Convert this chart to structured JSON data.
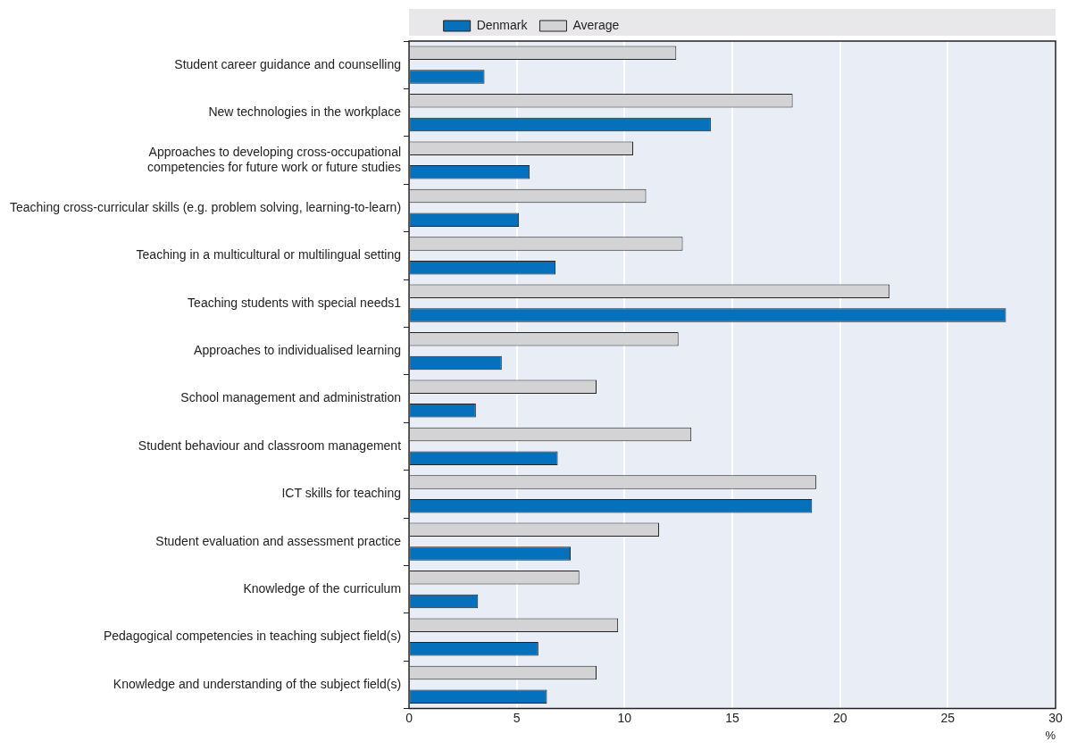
{
  "chart_data": {
    "type": "bar",
    "orientation": "horizontal",
    "xlabel": "%",
    "categories": [
      "Student career guidance and counselling",
      "New technologies in the workplace",
      "Approaches to developing cross-occupational competencies for future work or future studies",
      "Teaching cross-curricular skills (e.g. problem solving, learning-to-learn)",
      "Teaching in a multicultural or multilingual setting",
      "Teaching students with special needs1",
      "Approaches to individualised learning",
      "School management and administration",
      "Student behaviour and classroom management",
      "ICT skills for teaching",
      "Student evaluation and assessment practice",
      "Knowledge of the curriculum",
      "Pedagogical competencies in teaching subject field(s)",
      "Knowledge and understanding of the subject field(s)"
    ],
    "series": [
      {
        "name": "Average",
        "color": "#d3d3d5",
        "values": [
          12.4,
          17.8,
          10.4,
          11.0,
          12.7,
          22.3,
          12.5,
          8.7,
          13.1,
          18.9,
          11.6,
          7.9,
          9.7,
          8.7
        ]
      },
      {
        "name": "Denmark",
        "color": "#0570bb",
        "values": [
          3.5,
          14.0,
          5.6,
          5.1,
          6.8,
          27.7,
          4.3,
          3.1,
          6.9,
          18.7,
          7.5,
          3.2,
          6.0,
          6.4
        ]
      }
    ],
    "xlim": [
      0,
      30
    ],
    "xticks": [
      0,
      5,
      10,
      15,
      20,
      25,
      30
    ],
    "grid": "x",
    "legend": "top"
  }
}
